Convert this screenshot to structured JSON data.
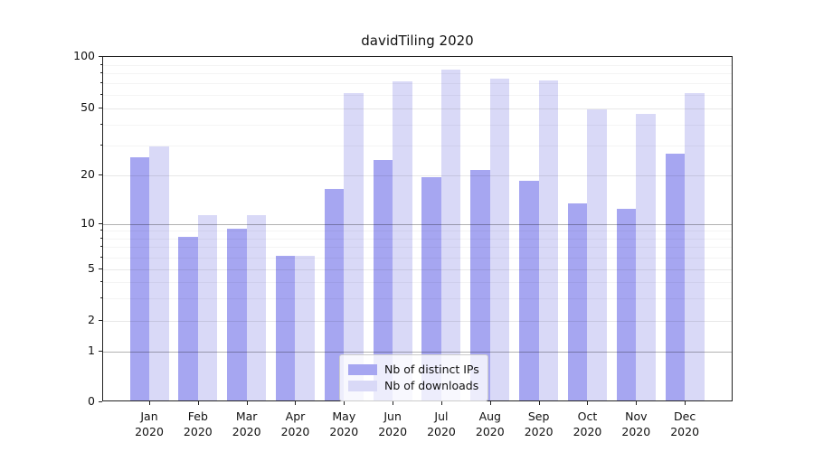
{
  "title": "davidTiling 2020",
  "chart_data": {
    "type": "bar",
    "title": "davidTiling 2020",
    "categories": [
      "Jan",
      "Feb",
      "Mar",
      "Apr",
      "May",
      "Jun",
      "Jul",
      "Aug",
      "Sep",
      "Oct",
      "Nov",
      "Dec"
    ],
    "x_tick_second_line": "2020",
    "series": [
      {
        "name": "Nb of distinct IPs",
        "color": "#a6a6f1",
        "values": [
          25,
          8,
          9,
          6,
          16,
          24,
          19,
          21,
          18,
          13,
          12,
          26
        ]
      },
      {
        "name": "Nb of downloads",
        "color": "#d9d9f7",
        "values": [
          29,
          11,
          11,
          6,
          60,
          70,
          82,
          73,
          71,
          48,
          45,
          60
        ]
      }
    ],
    "yscale": "symlog",
    "ylim": [
      0,
      100
    ],
    "y_ticks": [
      0,
      1,
      2,
      5,
      10,
      20,
      50,
      100
    ],
    "y_major_dark_gridlines": [
      1,
      10
    ],
    "y_major_light_gridlines": [
      2,
      5,
      20,
      50
    ],
    "y_minor_gridlines": [
      3,
      4,
      6,
      7,
      8,
      9,
      30,
      40,
      60,
      70,
      80,
      90
    ],
    "grid": true,
    "grid_above_bars": true,
    "legend_position": "lower center",
    "legend_labels": [
      "Nb of distinct IPs",
      "Nb of downloads"
    ],
    "xlabel": "",
    "ylabel": ""
  },
  "colors": {
    "distinct_ips_bar": "#a6a6f1",
    "downloads_bar": "#d9d9f7",
    "axis": "#222222",
    "legend_border": "#cccccc",
    "background": "#ffffff"
  }
}
